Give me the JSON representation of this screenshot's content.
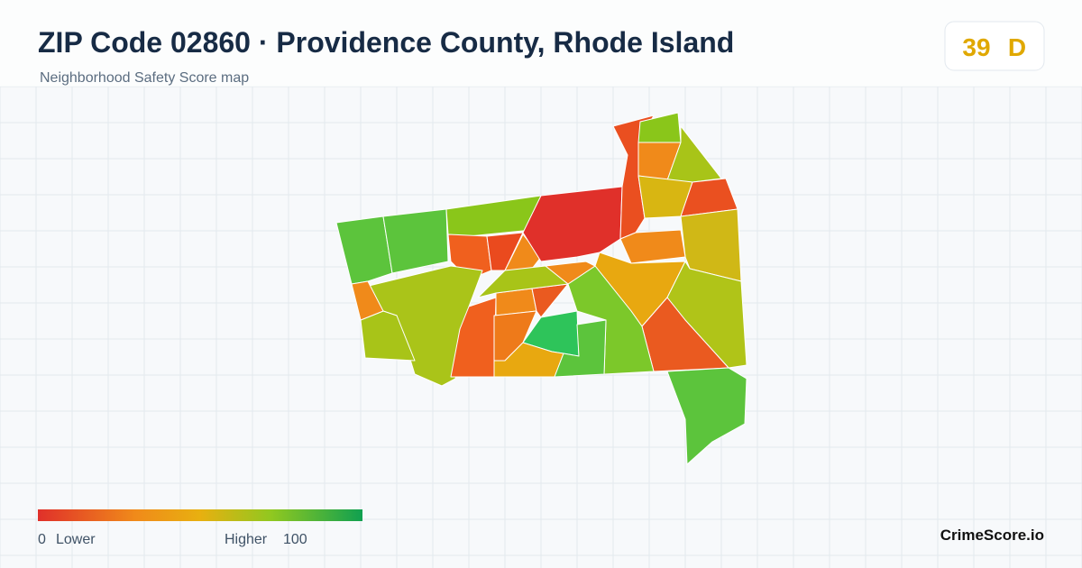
{
  "header": {
    "title": "ZIP Code 02860 · Providence County, Rhode Island",
    "subtitle": "Neighborhood Safety Score map"
  },
  "score": {
    "value": 39,
    "grade": "D"
  },
  "legend": {
    "min": 0,
    "min_label": "Lower",
    "max_label": "Higher",
    "max": 100
  },
  "brand": "CrimeScore.io"
}
